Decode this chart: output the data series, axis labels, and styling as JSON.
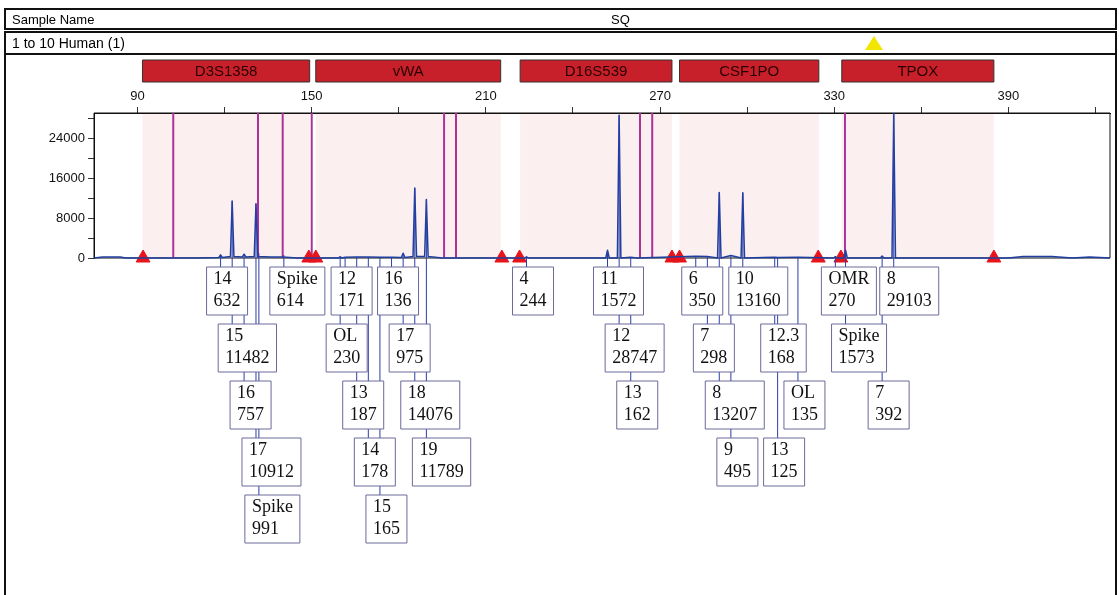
{
  "chart_data": {
    "type": "line",
    "title": "1 to 10 Human (1)",
    "annotations": [
      "Sample Name",
      "SQ",
      {
        "text": "14\n632",
        "x": 118.6,
        "y": 632
      },
      {
        "text": "15\n11482",
        "x": 122.6,
        "y": 11482
      },
      {
        "text": "16\n757",
        "x": 126.7,
        "y": 757
      },
      {
        "text": "17\n10912",
        "x": 130.8,
        "y": 10912
      },
      {
        "text": "Spike\n991",
        "x": 131.8,
        "y": 991
      },
      {
        "text": "Spike\n614",
        "x": 140.4,
        "y": 614
      },
      {
        "text": "OL\n230",
        "x": 159.8,
        "y": 230
      },
      {
        "text": "12\n171",
        "x": 161.5,
        "y": 171
      },
      {
        "text": "13\n187",
        "x": 165.5,
        "y": 187
      },
      {
        "text": "14\n178",
        "x": 169.5,
        "y": 178
      },
      {
        "text": "15\n165",
        "x": 173.5,
        "y": 165
      },
      {
        "text": "16\n136",
        "x": 177.5,
        "y": 136
      },
      {
        "text": "17\n975",
        "x": 181.5,
        "y": 975
      },
      {
        "text": "18\n14076",
        "x": 185.5,
        "y": 14076
      },
      {
        "text": "19\n11789",
        "x": 189.5,
        "y": 11789
      },
      {
        "text": "4\n244",
        "x": 224,
        "y": 244
      },
      {
        "text": "11\n1572",
        "x": 251.9,
        "y": 1572
      },
      {
        "text": "12\n28747",
        "x": 255.9,
        "y": 28747
      },
      {
        "text": "13\n162",
        "x": 259.9,
        "y": 162
      },
      {
        "text": "6\n350",
        "x": 282.3,
        "y": 350
      },
      {
        "text": "7\n298",
        "x": 286.3,
        "y": 298
      },
      {
        "text": "8\n13207",
        "x": 290.4,
        "y": 13207
      },
      {
        "text": "9\n495",
        "x": 294.4,
        "y": 495
      },
      {
        "text": "10\n13160",
        "x": 298.5,
        "y": 13160
      },
      {
        "text": "12.3\n168",
        "x": 309.5,
        "y": 168
      },
      {
        "text": "13\n125",
        "x": 310.5,
        "y": 125
      },
      {
        "text": "OL\n135",
        "x": 317.5,
        "y": 135
      },
      {
        "text": "OMR\n270",
        "x": 330.4,
        "y": 270
      },
      {
        "text": "Spike\n1573",
        "x": 333.9,
        "y": 1573
      },
      {
        "text": "7\n392",
        "x": 346.5,
        "y": 392
      },
      {
        "text": "8\n29103",
        "x": 350.5,
        "y": 29103
      }
    ],
    "xlim": [
      75,
      425
    ],
    "xticks": [
      90,
      {
        "value": 120,
        "label": null
      },
      150,
      {
        "value": 180,
        "label": null
      },
      210,
      {
        "value": 240,
        "label": null
      },
      270,
      {
        "value": 300,
        "label": null
      },
      330,
      {
        "value": 360,
        "label": null
      },
      390,
      {
        "value": 420,
        "label": null
      }
    ],
    "ylim": [
      0,
      29200
    ],
    "yticks": [
      0,
      {
        "value": 4000,
        "label": null
      },
      8000,
      {
        "value": 12000,
        "label": null
      },
      16000,
      {
        "value": 20000,
        "label": null
      },
      24000,
      {
        "value": 28000,
        "label": null
      }
    ],
    "grid": false,
    "legend": false,
    "bands": [
      {
        "axis": "x",
        "from": 91.7,
        "to": 149.3,
        "label": "D3S1358",
        "color": "#c8202a"
      },
      {
        "axis": "x",
        "from": 151.4,
        "to": 215.1,
        "label": "vWA",
        "color": "#c8202a"
      },
      {
        "axis": "x",
        "from": 221.8,
        "to": 274.1,
        "label": "D16S539",
        "color": "#c8202a"
      },
      {
        "axis": "x",
        "from": 276.7,
        "to": 324.7,
        "label": "CSF1PO",
        "color": "#c8202a"
      },
      {
        "axis": "x",
        "from": 332.6,
        "to": 385,
        "label": "TPOX",
        "color": "#c8202a"
      }
    ],
    "ref_lines": [
      {
        "axis": "x",
        "value": 102.3,
        "color": "#b0309a"
      },
      {
        "axis": "x",
        "value": 131.5,
        "color": "#b0309a"
      },
      {
        "axis": "x",
        "value": 140,
        "color": "#b0309a"
      },
      {
        "axis": "x",
        "value": 150,
        "color": "#b0309a"
      },
      {
        "axis": "x",
        "value": 195.6,
        "color": "#b0309a"
      },
      {
        "axis": "x",
        "value": 199.7,
        "color": "#b0309a"
      },
      {
        "axis": "x",
        "value": 263.1,
        "color": "#b0309a"
      },
      {
        "axis": "x",
        "value": 267.3,
        "color": "#b0309a"
      },
      {
        "axis": "x",
        "value": 333.7,
        "color": "#b0309a"
      }
    ],
    "series": [
      {
        "type": "line",
        "color": "#1f3fa0",
        "marker": "none",
        "x": [
          75,
          78,
          80,
          84,
          86,
          110,
          118,
          118.6,
          119.2,
          122,
          122.6,
          123.2,
          126.1,
          126.7,
          127.3,
          130.2,
          130.8,
          131.4,
          136,
          140,
          145,
          155,
          159.2,
          159.8,
          160.4,
          161.5,
          165.5,
          169.5,
          173.5,
          177.5,
          180.9,
          181.5,
          182.1,
          184.9,
          185.5,
          186.1,
          188.9,
          189.5,
          190.1,
          195,
          223.4,
          224,
          224.6,
          251.3,
          251.9,
          252.5,
          255.3,
          255.9,
          256.5,
          259.9,
          262,
          282.3,
          286.3,
          289.8,
          290.4,
          291,
          294.4,
          297.9,
          298.5,
          299.1,
          309.5,
          310.5,
          317.5,
          329.8,
          330.4,
          331,
          333.3,
          333.9,
          334.5,
          345.9,
          346.5,
          347.1,
          349.9,
          350.5,
          351.1,
          360,
          380,
          390,
          395,
          405,
          412,
          418,
          425
        ],
        "values": [
          0,
          200,
          200,
          200,
          0,
          0,
          100,
          632,
          100,
          300,
          11482,
          300,
          200,
          757,
          200,
          300,
          10912,
          300,
          200,
          200,
          0,
          0,
          0,
          230,
          0,
          171,
          187,
          178,
          165,
          136,
          100,
          975,
          100,
          300,
          14076,
          300,
          300,
          11789,
          300,
          0,
          0,
          244,
          0,
          0,
          1572,
          0,
          0,
          28747,
          0,
          162,
          0,
          350,
          298,
          0,
          13207,
          0,
          495,
          0,
          13160,
          0,
          168,
          125,
          135,
          0,
          270,
          0,
          0,
          1573,
          0,
          0,
          392,
          0,
          0,
          29103,
          0,
          0,
          0,
          0,
          300,
          300,
          0,
          200,
          0
        ]
      },
      {
        "type": "scatter",
        "color": "#e8141c",
        "marker": "triangle",
        "x": [
          91.9,
          149,
          151.4,
          215.5,
          221.6,
          274.1,
          276.7,
          324.5,
          332.3,
          385
        ],
        "values": [
          0,
          0,
          0,
          0,
          0,
          0,
          0,
          0,
          0,
          0
        ]
      }
    ]
  }
}
